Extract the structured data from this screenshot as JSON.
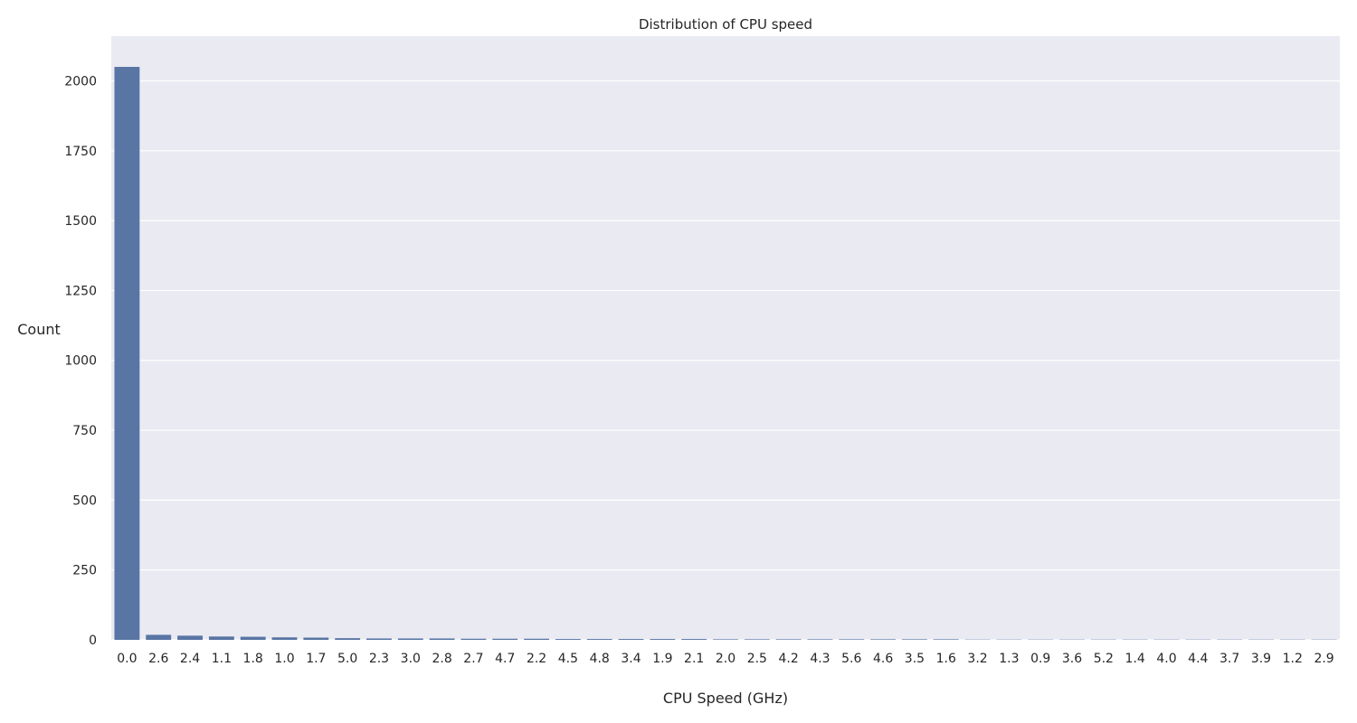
{
  "chart_data": {
    "type": "bar",
    "title": "Distribution of CPU speed",
    "xlabel": "CPU Speed (GHz)",
    "ylabel": "Count",
    "ylim": [
      0,
      2160
    ],
    "yticks": [
      0,
      250,
      500,
      750,
      1000,
      1250,
      1500,
      1750,
      2000
    ],
    "grid": true,
    "legend": "none",
    "bar_color": "#5875a4",
    "background_color": "#eaeaf2",
    "categories": [
      "0.0",
      "2.6",
      "2.4",
      "1.1",
      "1.8",
      "1.0",
      "1.7",
      "5.0",
      "2.3",
      "3.0",
      "2.8",
      "2.7",
      "4.7",
      "2.2",
      "4.5",
      "4.8",
      "3.4",
      "1.9",
      "2.1",
      "2.0",
      "2.5",
      "4.2",
      "4.3",
      "5.6",
      "4.6",
      "3.5",
      "1.6",
      "3.2",
      "1.3",
      "0.9",
      "3.6",
      "5.2",
      "1.4",
      "4.0",
      "4.4",
      "3.7",
      "3.9",
      "1.2",
      "2.9"
    ],
    "values": [
      2050,
      18,
      15,
      12,
      11,
      9,
      8,
      6,
      5,
      5,
      5,
      4,
      4,
      4,
      3,
      3,
      3,
      3,
      3,
      2,
      2,
      2,
      2,
      2,
      2,
      2,
      2,
      1,
      1,
      1,
      1,
      1,
      1,
      1,
      1,
      1,
      1,
      1,
      1
    ]
  }
}
